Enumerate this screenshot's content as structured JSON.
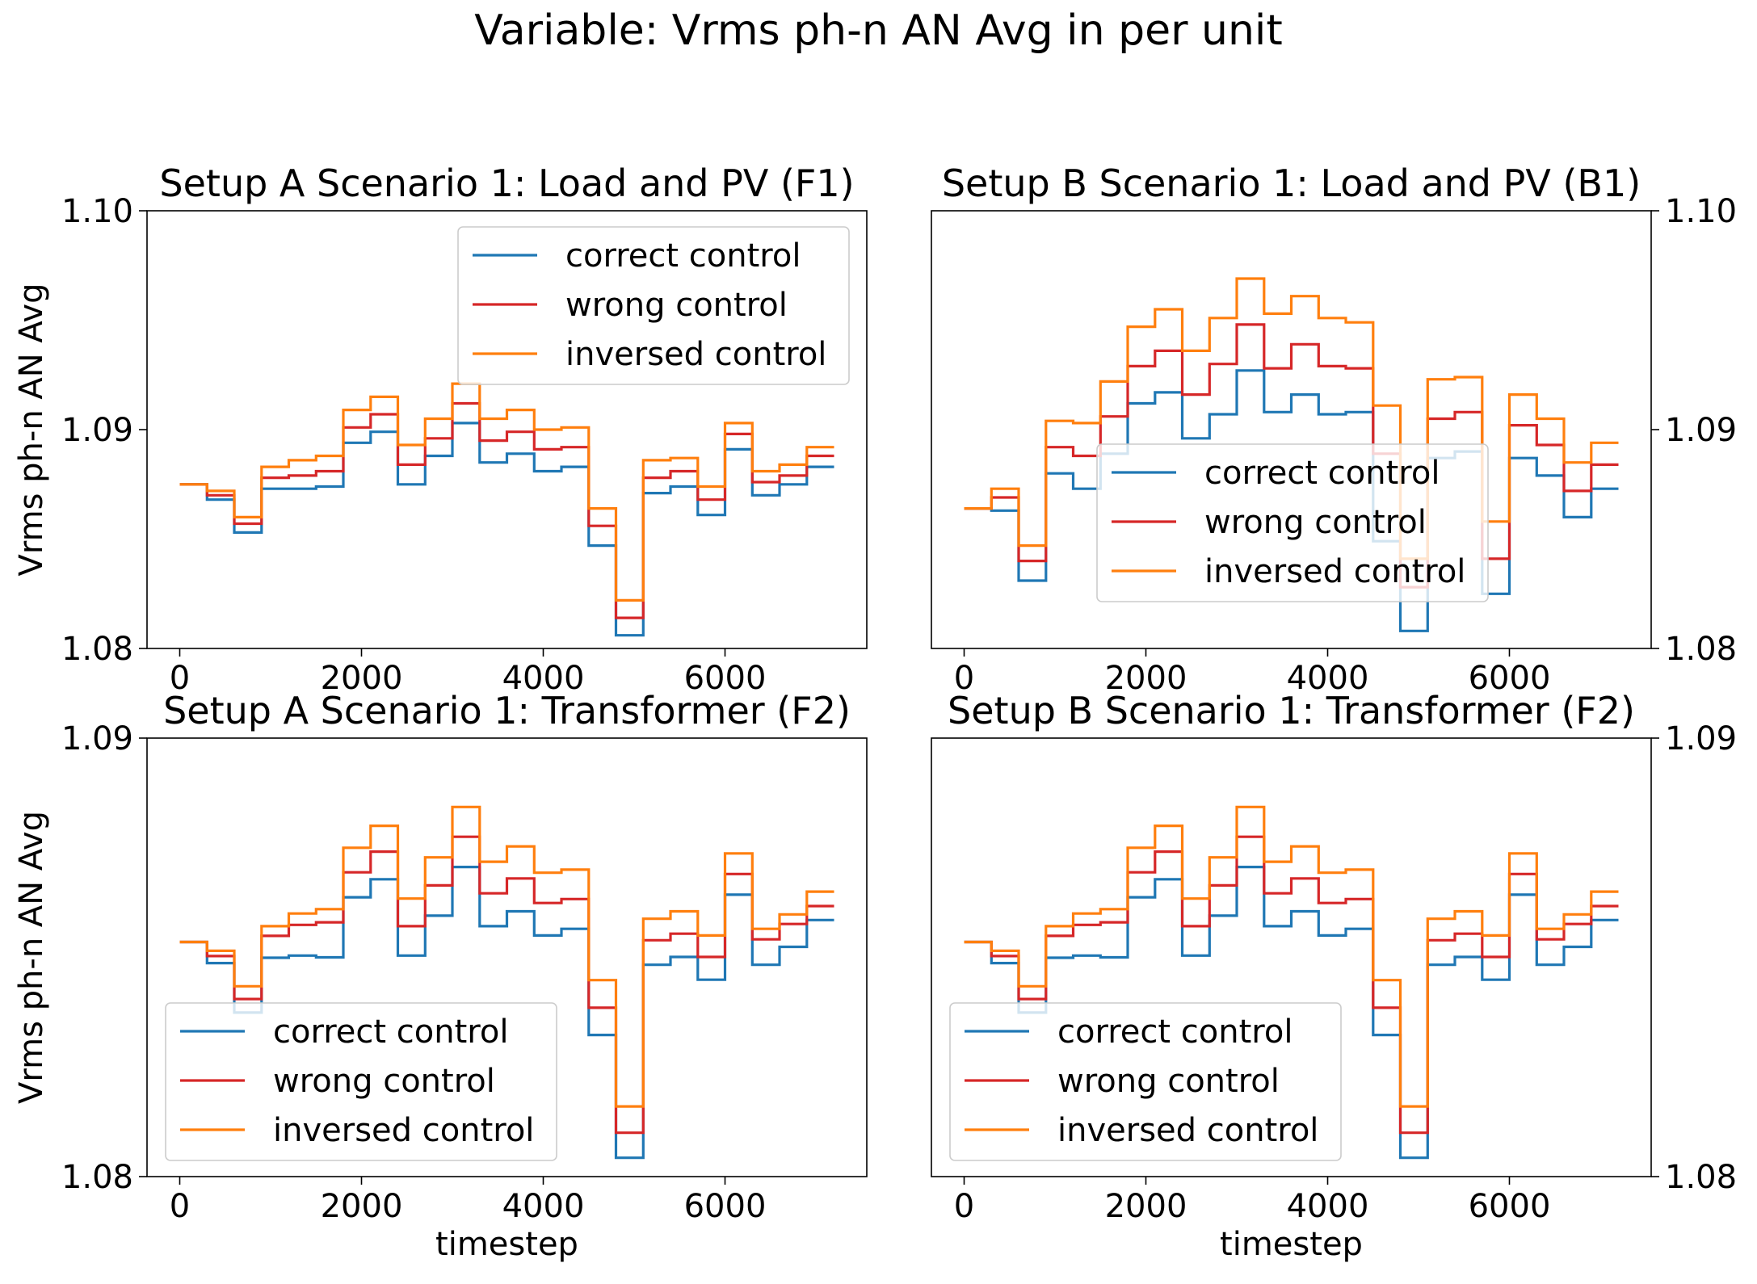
{
  "figure": {
    "suptitle": "Variable: Vrms ph-n AN Avg in per unit"
  },
  "colors": {
    "correct control": "#1f77b4",
    "wrong control": "#d62728",
    "inversed control": "#ff7f0e"
  },
  "chart_data": [
    {
      "type": "line",
      "title": "Setup A Scenario 1: Load and PV (F1)",
      "xlabel": "",
      "ylabel": "Vrms ph-n AN Avg",
      "xlim": [
        -360,
        7560
      ],
      "ylim": [
        1.08,
        1.1
      ],
      "xticks": [
        0,
        2000,
        4000,
        6000
      ],
      "xtick_labels": [
        "0",
        "2000",
        "4000",
        "6000"
      ],
      "yticks": [
        1.08,
        1.09,
        1.1
      ],
      "ytick_labels": [
        "1.08",
        "1.09",
        "1.10"
      ],
      "y_axis_side": "left",
      "legend": "upper right",
      "grid": false,
      "x": [
        0,
        300,
        600,
        900,
        1200,
        1500,
        1800,
        2100,
        2400,
        2700,
        3000,
        3300,
        3600,
        3900,
        4200,
        4500,
        4800,
        5100,
        5400,
        5700,
        6000,
        6300,
        6600,
        6900,
        7200
      ],
      "series": [
        {
          "name": "correct control",
          "values": [
            1.0875,
            1.0868,
            1.0853,
            1.0873,
            1.0873,
            1.0874,
            1.0894,
            1.0899,
            1.0875,
            1.0888,
            1.0903,
            1.0885,
            1.0889,
            1.0881,
            1.0883,
            1.0847,
            1.0806,
            1.0871,
            1.0874,
            1.0861,
            1.0891,
            1.087,
            1.0875,
            1.0883,
            1.0883
          ]
        },
        {
          "name": "wrong control",
          "values": [
            1.0875,
            1.087,
            1.0857,
            1.0878,
            1.0879,
            1.0881,
            1.0901,
            1.0907,
            1.0884,
            1.0896,
            1.0912,
            1.0895,
            1.0899,
            1.0891,
            1.0892,
            1.0856,
            1.0814,
            1.0878,
            1.0881,
            1.0868,
            1.0898,
            1.0876,
            1.0879,
            1.0888,
            1.0888
          ]
        },
        {
          "name": "inversed control",
          "values": [
            1.0875,
            1.0872,
            1.086,
            1.0883,
            1.0886,
            1.0888,
            1.0909,
            1.0915,
            1.0893,
            1.0905,
            1.0921,
            1.0905,
            1.0909,
            1.09,
            1.0901,
            1.0864,
            1.0822,
            1.0886,
            1.0887,
            1.0874,
            1.0903,
            1.0881,
            1.0884,
            1.0892,
            1.0892
          ]
        }
      ]
    },
    {
      "type": "line",
      "title": "Setup B Scenario 1: Load and PV (B1)",
      "xlabel": "",
      "ylabel": "",
      "xlim": [
        -360,
        7560
      ],
      "ylim": [
        1.08,
        1.1
      ],
      "xticks": [
        0,
        2000,
        4000,
        6000
      ],
      "xtick_labels": [
        "0",
        "2000",
        "4000",
        "6000"
      ],
      "yticks": [
        1.08,
        1.09,
        1.1
      ],
      "ytick_labels": [
        "1.08",
        "1.09",
        "1.10"
      ],
      "y_axis_side": "right",
      "legend": "lower center",
      "grid": false,
      "x": [
        0,
        300,
        600,
        900,
        1200,
        1500,
        1800,
        2100,
        2400,
        2700,
        3000,
        3300,
        3600,
        3900,
        4200,
        4500,
        4800,
        5100,
        5400,
        5700,
        6000,
        6300,
        6600,
        6900,
        7200
      ],
      "series": [
        {
          "name": "correct control",
          "values": [
            1.0864,
            1.0863,
            1.0831,
            1.088,
            1.0873,
            1.0889,
            1.0912,
            1.0917,
            1.0896,
            1.0907,
            1.0927,
            1.0908,
            1.0916,
            1.0907,
            1.0908,
            1.0849,
            1.0808,
            1.0887,
            1.089,
            1.0825,
            1.0887,
            1.0879,
            1.086,
            1.0873,
            1.0873
          ]
        },
        {
          "name": "wrong control",
          "values": [
            1.0864,
            1.0869,
            1.084,
            1.0892,
            1.0888,
            1.0906,
            1.0929,
            1.0936,
            1.0916,
            1.093,
            1.0948,
            1.0928,
            1.0939,
            1.0929,
            1.0928,
            1.0889,
            1.0828,
            1.0905,
            1.0908,
            1.0841,
            1.0902,
            1.0893,
            1.0872,
            1.0884,
            1.0884
          ]
        },
        {
          "name": "inversed control",
          "values": [
            1.0864,
            1.0873,
            1.0847,
            1.0904,
            1.0903,
            1.0922,
            1.0947,
            1.0955,
            1.0936,
            1.0951,
            1.0969,
            1.0953,
            1.0961,
            1.0951,
            1.0949,
            1.0911,
            1.0841,
            1.0923,
            1.0924,
            1.0858,
            1.0916,
            1.0905,
            1.0885,
            1.0894,
            1.0894
          ]
        }
      ]
    },
    {
      "type": "line",
      "title": "Setup A Scenario 1: Transformer (F2)",
      "xlabel": "timestep",
      "ylabel": "Vrms ph-n AN Avg",
      "xlim": [
        -360,
        7560
      ],
      "ylim": [
        1.08,
        1.09
      ],
      "xticks": [
        0,
        2000,
        4000,
        6000
      ],
      "xtick_labels": [
        "0",
        "2000",
        "4000",
        "6000"
      ],
      "yticks": [
        1.08,
        1.09
      ],
      "ytick_labels": [
        "1.08",
        "1.09"
      ],
      "y_axis_side": "left",
      "legend": "lower left",
      "grid": false,
      "x": [
        0,
        300,
        600,
        900,
        1200,
        1500,
        1800,
        2100,
        2400,
        2700,
        3000,
        3300,
        3600,
        3900,
        4200,
        4500,
        4800,
        5100,
        5400,
        5700,
        6000,
        6300,
        6600,
        6900,
        7200
      ],
      "series": [
        {
          "name": "correct control",
          "values": [
            1.08535,
            1.08487,
            1.08374,
            1.08499,
            1.08504,
            1.085,
            1.08637,
            1.08678,
            1.08504,
            1.08595,
            1.08706,
            1.08571,
            1.08605,
            1.0855,
            1.08565,
            1.08323,
            1.08043,
            1.08483,
            1.08501,
            1.08449,
            1.08643,
            1.08483,
            1.08524,
            1.08585,
            1.08585
          ]
        },
        {
          "name": "wrong control",
          "values": [
            1.08535,
            1.08503,
            1.08405,
            1.08549,
            1.08574,
            1.0858,
            1.08694,
            1.08741,
            1.08571,
            1.08664,
            1.08775,
            1.08646,
            1.0868,
            1.08624,
            1.08633,
            1.08385,
            1.081,
            1.08539,
            1.08554,
            1.08501,
            1.0869,
            1.08541,
            1.08576,
            1.08617,
            1.08617
          ]
        },
        {
          "name": "inversed control",
          "values": [
            1.08535,
            1.08515,
            1.08434,
            1.08571,
            1.086,
            1.0861,
            1.0875,
            1.088,
            1.08634,
            1.08728,
            1.08843,
            1.08718,
            1.08753,
            1.08693,
            1.087,
            1.08448,
            1.0816,
            1.08588,
            1.08605,
            1.0855,
            1.08737,
            1.08565,
            1.08598,
            1.0865,
            1.0865
          ]
        }
      ]
    },
    {
      "type": "line",
      "title": "Setup B Scenario 1: Transformer (F2)",
      "xlabel": "timestep",
      "ylabel": "",
      "xlim": [
        -360,
        7560
      ],
      "ylim": [
        1.08,
        1.09
      ],
      "xticks": [
        0,
        2000,
        4000,
        6000
      ],
      "xtick_labels": [
        "0",
        "2000",
        "4000",
        "6000"
      ],
      "yticks": [
        1.08,
        1.09
      ],
      "ytick_labels": [
        "1.08",
        "1.09"
      ],
      "y_axis_side": "right",
      "legend": "lower left",
      "grid": false,
      "x": [
        0,
        300,
        600,
        900,
        1200,
        1500,
        1800,
        2100,
        2400,
        2700,
        3000,
        3300,
        3600,
        3900,
        4200,
        4500,
        4800,
        5100,
        5400,
        5700,
        6000,
        6300,
        6600,
        6900,
        7200
      ],
      "series": [
        {
          "name": "correct control",
          "values": [
            1.08535,
            1.08487,
            1.08374,
            1.08499,
            1.08504,
            1.085,
            1.08637,
            1.08678,
            1.08504,
            1.08595,
            1.08706,
            1.08571,
            1.08605,
            1.0855,
            1.08565,
            1.08323,
            1.08043,
            1.08483,
            1.08501,
            1.08449,
            1.08643,
            1.08483,
            1.08524,
            1.08585,
            1.08585
          ]
        },
        {
          "name": "wrong control",
          "values": [
            1.08535,
            1.08503,
            1.08405,
            1.08549,
            1.08574,
            1.0858,
            1.08694,
            1.08741,
            1.08571,
            1.08664,
            1.08775,
            1.08646,
            1.0868,
            1.08624,
            1.08633,
            1.08385,
            1.081,
            1.08539,
            1.08554,
            1.08501,
            1.0869,
            1.08541,
            1.08576,
            1.08617,
            1.08617
          ]
        },
        {
          "name": "inversed control",
          "values": [
            1.08535,
            1.08515,
            1.08434,
            1.08571,
            1.086,
            1.0861,
            1.0875,
            1.088,
            1.08634,
            1.08728,
            1.08843,
            1.08718,
            1.08753,
            1.08693,
            1.087,
            1.08448,
            1.0816,
            1.08588,
            1.08605,
            1.0855,
            1.08737,
            1.08565,
            1.08598,
            1.0865,
            1.0865
          ]
        }
      ]
    }
  ]
}
